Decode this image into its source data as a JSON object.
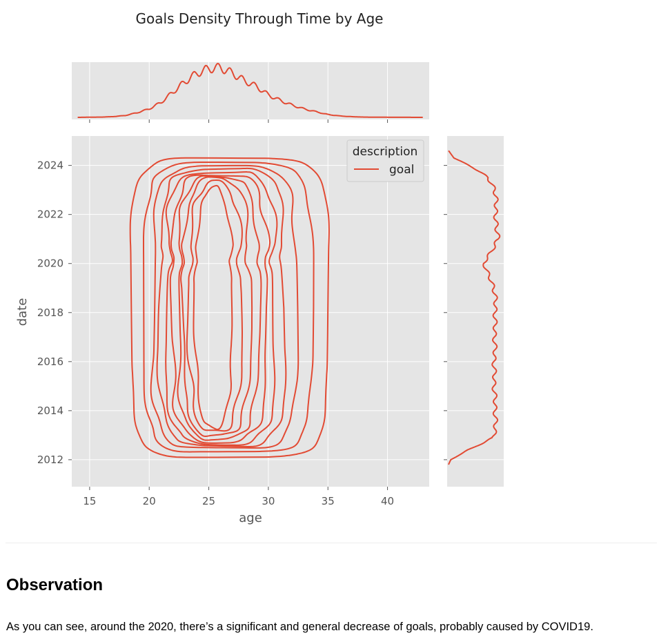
{
  "chart_data": {
    "type": "kde-joint",
    "title": "Goals Density Through Time by Age",
    "xlabel": "age",
    "ylabel": "date",
    "xlim": [
      13.5,
      43.5
    ],
    "ylim": [
      2010.9,
      2025.2
    ],
    "x_ticks": [
      15,
      20,
      25,
      30,
      35,
      40
    ],
    "y_ticks": [
      2012,
      2014,
      2016,
      2018,
      2020,
      2022,
      2024
    ],
    "grid": true,
    "legend": {
      "title": "description",
      "placement": "top-right",
      "entries": [
        {
          "name": "goal",
          "color": "#E24A33"
        }
      ]
    },
    "series": [
      {
        "name": "goal",
        "color": "#E24A33",
        "age_density": {
          "x": [
            14,
            16,
            17,
            18,
            19,
            20,
            21,
            22,
            23,
            24,
            25,
            26,
            27,
            28,
            29,
            30,
            31,
            32,
            33,
            34,
            35,
            36,
            37,
            38,
            40,
            43
          ],
          "density": [
            0.0,
            0.003,
            0.008,
            0.02,
            0.05,
            0.09,
            0.16,
            0.27,
            0.38,
            0.47,
            0.52,
            0.53,
            0.47,
            0.39,
            0.33,
            0.24,
            0.18,
            0.13,
            0.09,
            0.06,
            0.03,
            0.015,
            0.007,
            0.003,
            0.001,
            0.0
          ]
        },
        "date_density": {
          "y": [
            2011.8,
            2012.0,
            2012.4,
            2012.9,
            2013.5,
            2014.0,
            2014.5,
            2015.0,
            2015.5,
            2016.0,
            2016.5,
            2017.0,
            2017.5,
            2018.0,
            2018.5,
            2019.0,
            2019.5,
            2020.0,
            2020.5,
            2021.0,
            2021.5,
            2022.0,
            2022.5,
            2023.0,
            2023.5,
            2023.9,
            2024.3,
            2024.6
          ],
          "density": [
            0.0,
            0.04,
            0.35,
            0.8,
            0.84,
            0.82,
            0.83,
            0.8,
            0.82,
            0.8,
            0.83,
            0.81,
            0.83,
            0.82,
            0.84,
            0.8,
            0.72,
            0.62,
            0.76,
            0.88,
            0.85,
            0.83,
            0.85,
            0.82,
            0.7,
            0.45,
            0.1,
            0.0
          ]
        },
        "contour_levels": [
          {
            "x_range": [
              18.5,
              35.0
            ],
            "y_range": [
              2012.1,
              2024.3
            ]
          },
          {
            "x_range": [
              19.6,
              33.6
            ],
            "y_range": [
              2012.3,
              2024.1
            ]
          },
          {
            "x_range": [
              20.3,
              32.3
            ],
            "y_range": [
              2012.45,
              2023.95
            ]
          },
          {
            "x_range": [
              20.9,
              31.4
            ],
            "y_range": [
              2012.55,
              2023.85
            ]
          },
          {
            "x_range": [
              21.4,
              30.6
            ],
            "y_range": [
              2012.65,
              2023.75
            ]
          },
          {
            "x_range": [
              21.9,
              29.9
            ],
            "y_range": [
              2012.75,
              2023.65
            ]
          },
          {
            "x_range": [
              22.4,
              29.2
            ],
            "y_range": [
              2012.85,
              2023.55
            ]
          },
          {
            "x_range": [
              22.8,
              28.5
            ],
            "y_range": [
              2012.95,
              2023.45
            ]
          },
          {
            "x_range": [
              23.3,
              27.8
            ],
            "y_range": [
              2013.1,
              2023.3
            ]
          },
          {
            "x_range": [
              23.8,
              27.0
            ],
            "y_range": [
              2013.25,
              2023.1
            ]
          }
        ]
      }
    ]
  },
  "observation": {
    "heading": "Observation",
    "text": "As you can see, around the 2020, there’s a significant and general decrease of goals, probably caused by COVID19."
  }
}
